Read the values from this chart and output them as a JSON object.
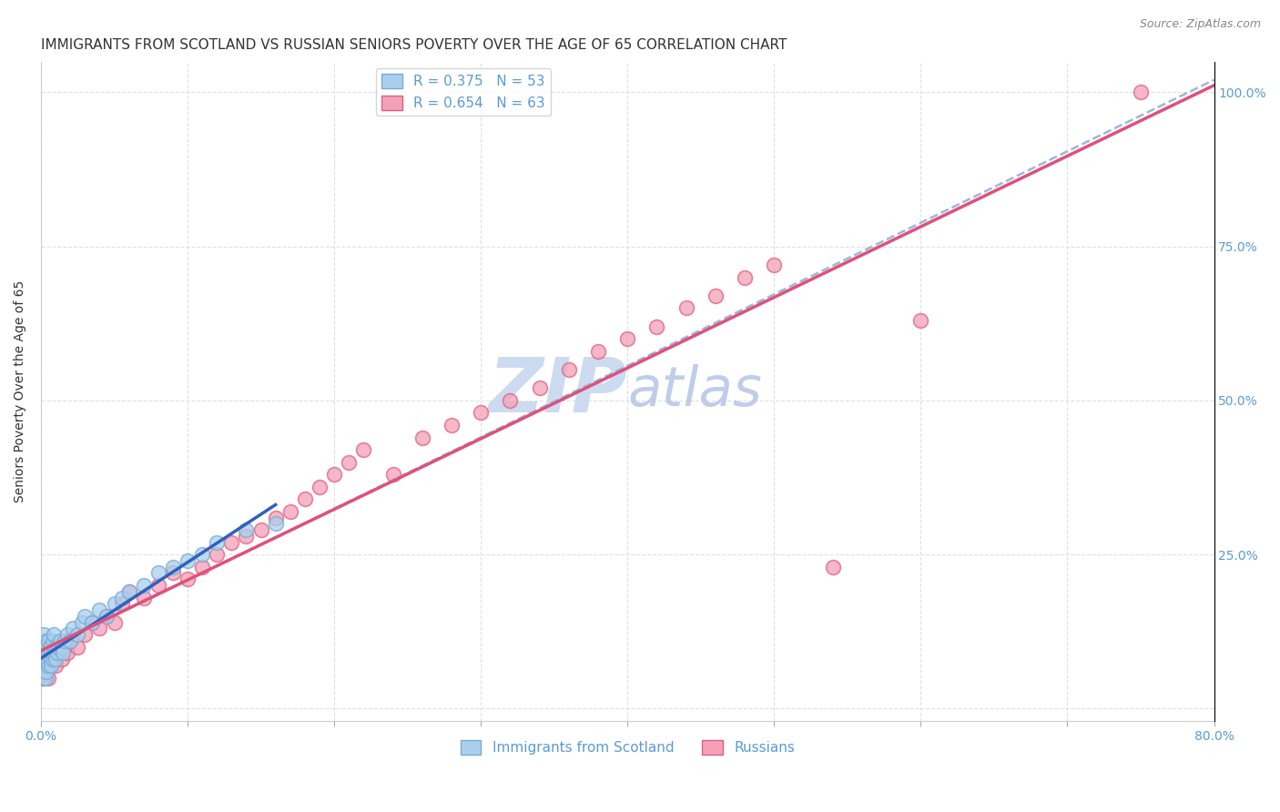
{
  "title": "IMMIGRANTS FROM SCOTLAND VS RUSSIAN SENIORS POVERTY OVER THE AGE OF 65 CORRELATION CHART",
  "source": "Source: ZipAtlas.com",
  "ylabel_left": "Seniors Poverty Over the Age of 65",
  "xlim": [
    0.0,
    0.8
  ],
  "ylim": [
    -0.02,
    1.05
  ],
  "legend_entries": [
    {
      "label": "R = 0.375   N = 53",
      "color": "#aacfee"
    },
    {
      "label": "R = 0.654   N = 63",
      "color": "#f4a0b8"
    }
  ],
  "legend_labels_bottom": [
    "Immigrants from Scotland",
    "Russians"
  ],
  "scotland_color": "#aacfee",
  "scotland_edge": "#7aaad0",
  "russian_color": "#f4a0b8",
  "russian_edge": "#e06080",
  "scotland_line_color": "#3060c0",
  "russian_line_color": "#e0507a",
  "dashed_line_color": "#9ab8d8",
  "watermark_color": "#c8d8f0",
  "background_color": "#ffffff",
  "grid_color": "#e0e0e0",
  "title_fontsize": 11,
  "axis_label_fontsize": 10,
  "tick_fontsize": 10,
  "tick_color_blue": "#5b9bd5",
  "title_color": "#333333",
  "source_color": "#888888",
  "scotland_x": [
    0.001,
    0.001,
    0.001,
    0.002,
    0.002,
    0.002,
    0.002,
    0.003,
    0.003,
    0.003,
    0.003,
    0.004,
    0.004,
    0.004,
    0.005,
    0.005,
    0.005,
    0.006,
    0.006,
    0.007,
    0.007,
    0.008,
    0.008,
    0.009,
    0.009,
    0.01,
    0.01,
    0.011,
    0.012,
    0.013,
    0.014,
    0.015,
    0.016,
    0.018,
    0.02,
    0.022,
    0.025,
    0.028,
    0.03,
    0.035,
    0.04,
    0.045,
    0.05,
    0.055,
    0.06,
    0.07,
    0.08,
    0.09,
    0.1,
    0.11,
    0.12,
    0.14,
    0.16
  ],
  "scotland_y": [
    0.05,
    0.08,
    0.1,
    0.06,
    0.07,
    0.09,
    0.12,
    0.05,
    0.07,
    0.09,
    0.11,
    0.06,
    0.08,
    0.1,
    0.07,
    0.09,
    0.11,
    0.08,
    0.1,
    0.07,
    0.09,
    0.08,
    0.11,
    0.09,
    0.12,
    0.08,
    0.1,
    0.09,
    0.1,
    0.11,
    0.1,
    0.09,
    0.11,
    0.12,
    0.11,
    0.13,
    0.12,
    0.14,
    0.15,
    0.14,
    0.16,
    0.15,
    0.17,
    0.18,
    0.19,
    0.2,
    0.22,
    0.23,
    0.24,
    0.25,
    0.27,
    0.29,
    0.3
  ],
  "russian_x": [
    0.001,
    0.001,
    0.001,
    0.002,
    0.002,
    0.002,
    0.003,
    0.003,
    0.004,
    0.004,
    0.005,
    0.005,
    0.006,
    0.007,
    0.008,
    0.009,
    0.01,
    0.012,
    0.014,
    0.016,
    0.018,
    0.02,
    0.025,
    0.03,
    0.035,
    0.04,
    0.045,
    0.05,
    0.055,
    0.06,
    0.07,
    0.08,
    0.09,
    0.1,
    0.11,
    0.12,
    0.13,
    0.14,
    0.15,
    0.16,
    0.17,
    0.18,
    0.19,
    0.2,
    0.21,
    0.22,
    0.24,
    0.26,
    0.28,
    0.3,
    0.32,
    0.34,
    0.36,
    0.38,
    0.4,
    0.42,
    0.44,
    0.46,
    0.48,
    0.5,
    0.54,
    0.6,
    0.75
  ],
  "russian_y": [
    0.05,
    0.07,
    0.09,
    0.06,
    0.08,
    0.1,
    0.07,
    0.09,
    0.06,
    0.08,
    0.05,
    0.07,
    0.08,
    0.07,
    0.09,
    0.08,
    0.07,
    0.09,
    0.08,
    0.1,
    0.09,
    0.11,
    0.1,
    0.12,
    0.14,
    0.13,
    0.15,
    0.14,
    0.17,
    0.19,
    0.18,
    0.2,
    0.22,
    0.21,
    0.23,
    0.25,
    0.27,
    0.28,
    0.29,
    0.31,
    0.32,
    0.34,
    0.36,
    0.38,
    0.4,
    0.42,
    0.38,
    0.44,
    0.46,
    0.48,
    0.5,
    0.52,
    0.55,
    0.58,
    0.6,
    0.62,
    0.65,
    0.67,
    0.7,
    0.72,
    0.23,
    0.63,
    1.0
  ]
}
